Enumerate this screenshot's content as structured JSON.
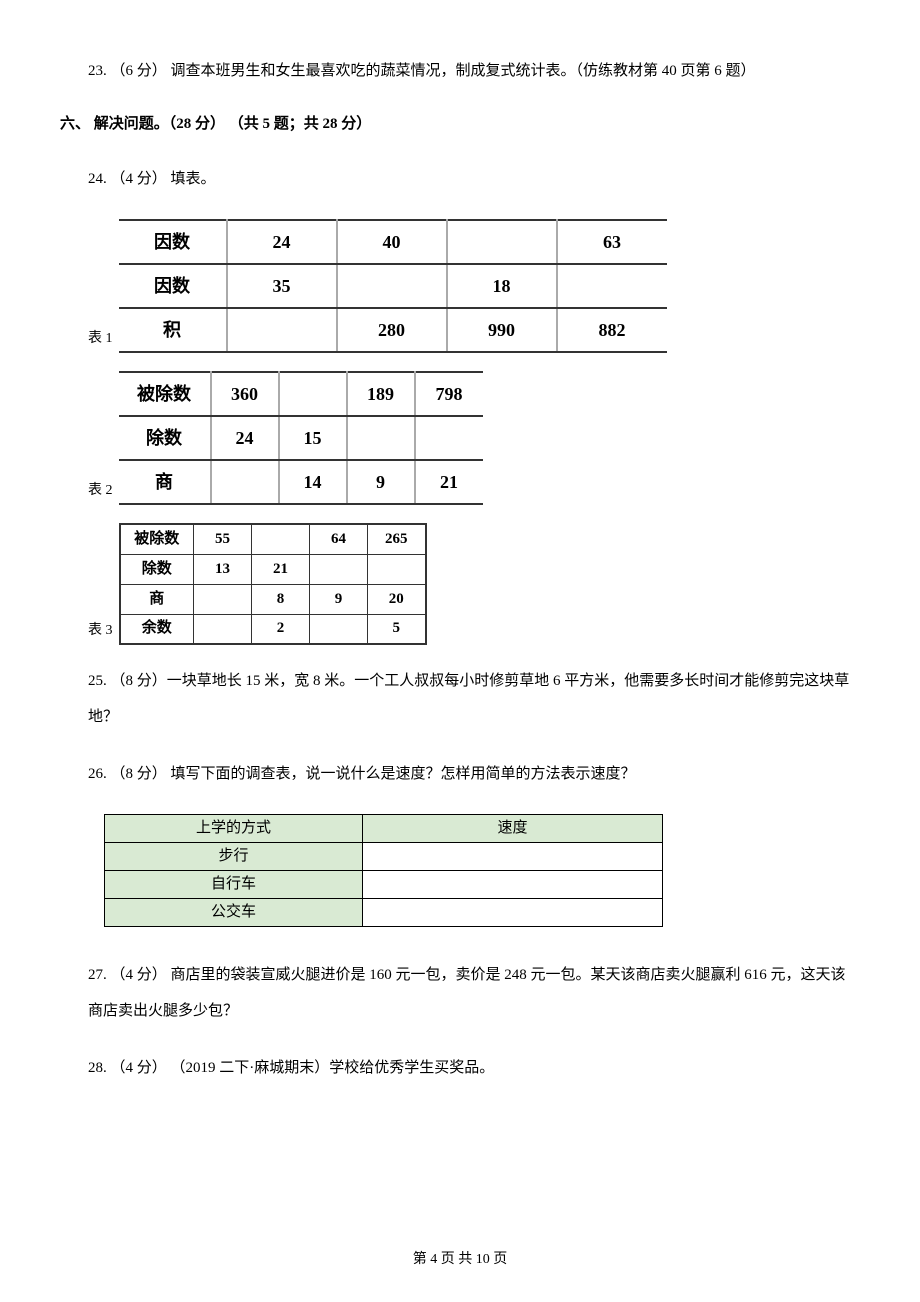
{
  "q23": {
    "text": "23.  （6 分）  调查本班男生和女生最喜欢吃的蔬菜情况，制成复式统计表。（仿练教材第 40 页第 6 题）"
  },
  "section6": {
    "header": "六、  解决问题。（28 分）  （共 5 题；共 28 分）"
  },
  "q24": {
    "text": "24.  （4 分）  填表。"
  },
  "table1": {
    "label": "表 1",
    "type": "table",
    "border_color": "#333333",
    "rows": [
      [
        "因数",
        "24",
        "40",
        "",
        "63"
      ],
      [
        "因数",
        "35",
        "",
        "18",
        ""
      ],
      [
        "积",
        "",
        "280",
        "990",
        "882"
      ]
    ]
  },
  "table2": {
    "label": "表 2",
    "type": "table",
    "rows": [
      [
        "被除数",
        "360",
        "",
        "189",
        "798"
      ],
      [
        "除数",
        "24",
        "15",
        "",
        ""
      ],
      [
        "商",
        "",
        "14",
        "9",
        "21"
      ]
    ]
  },
  "table3": {
    "label": "表 3",
    "type": "table",
    "rows": [
      [
        "被除数",
        "55",
        "",
        "64",
        "265"
      ],
      [
        "除数",
        "13",
        "21",
        "",
        ""
      ],
      [
        "商",
        "",
        "8",
        "9",
        "20"
      ],
      [
        "余数",
        "",
        "2",
        "",
        "5"
      ]
    ]
  },
  "q25": {
    "text": "25.  （8 分）一块草地长 15 米，宽 8 米。一个工人叔叔每小时修剪草地 6 平方米，他需要多长时间才能修剪完这块草地？"
  },
  "q26": {
    "text": "26.  （8 分）  填写下面的调查表，说一说什么是速度？怎样用简单的方法表示速度？"
  },
  "table4": {
    "type": "table",
    "header_bg": "#d9ead3",
    "rows": [
      [
        "上学的方式",
        "速度"
      ],
      [
        "步行",
        ""
      ],
      [
        "自行车",
        ""
      ],
      [
        "公交车",
        ""
      ]
    ]
  },
  "q27": {
    "text": "27.  （4 分）  商店里的袋装宣威火腿进价是 160 元一包，卖价是 248 元一包。某天该商店卖火腿赢利 616 元，这天该商店卖出火腿多少包？"
  },
  "q28": {
    "text": "28.  （4 分） （2019 二下·麻城期末）学校给优秀学生买奖品。"
  },
  "footer": {
    "text": "第 4 页 共 10 页"
  }
}
